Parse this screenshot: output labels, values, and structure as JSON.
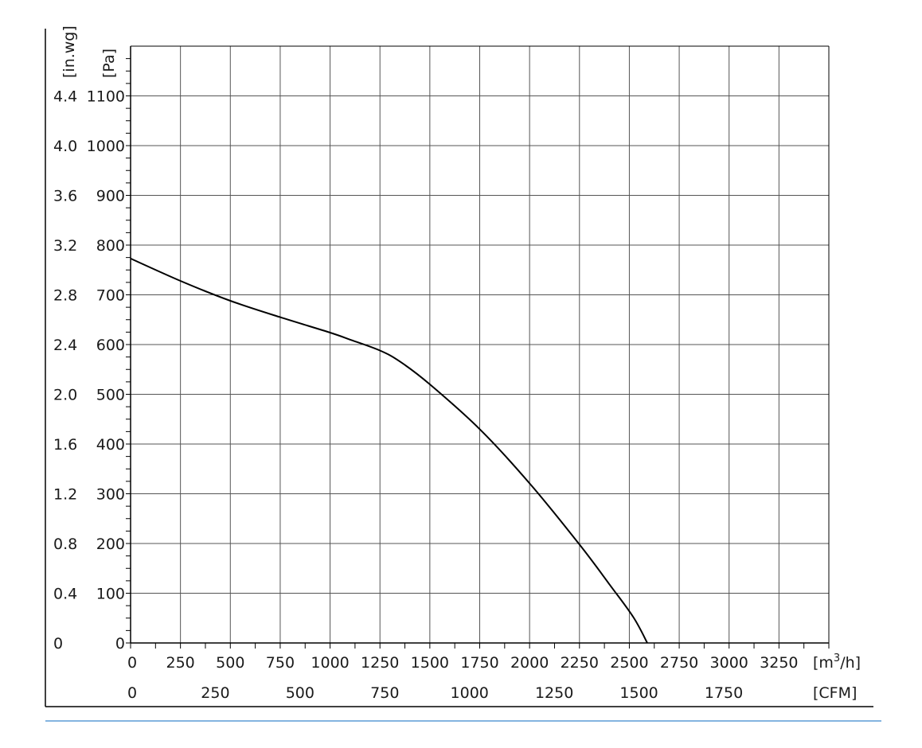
{
  "chart_data": {
    "type": "line",
    "title": "",
    "x": [
      0,
      250,
      500,
      750,
      1000,
      1100,
      1250,
      1350,
      1500,
      1750,
      2000,
      2250,
      2400,
      2520,
      2590
    ],
    "series": [
      {
        "values": [
          773,
          728,
          688,
          655,
          624,
          610,
          588,
          566,
          520,
          430,
          321,
          198,
          118,
          52,
          0
        ]
      }
    ],
    "x_axis_primary": {
      "unit_label": "[m³/h]",
      "unit_base": "[m",
      "unit_sup": "3",
      "unit_tail": "/h]",
      "range": [
        0,
        3500
      ],
      "tick_labels": [
        "0",
        "250",
        "500",
        "750",
        "1000",
        "1250",
        "1500",
        "1750",
        "2000",
        "2250",
        "2500",
        "2750",
        "3000",
        "3250"
      ]
    },
    "x_axis_secondary": {
      "unit_label": "[CFM]",
      "tick_values": [
        0,
        250,
        500,
        750,
        1000,
        1250,
        1500,
        1750
      ],
      "tick_labels": [
        "0",
        "250",
        "500",
        "750",
        "1000",
        "1250",
        "1500",
        "1750"
      ]
    },
    "y_axis_primary": {
      "unit_label": "[Pa]",
      "range": [
        0,
        1200
      ],
      "tick_labels": [
        "0",
        "100",
        "200",
        "300",
        "400",
        "500",
        "600",
        "700",
        "800",
        "900",
        "1000",
        "1100"
      ]
    },
    "y_axis_secondary": {
      "unit_label": "[in.wg]",
      "tick_labels": [
        "0",
        "0.4",
        "0.8",
        "1.2",
        "1.6",
        "2.0",
        "2.4",
        "2.8",
        "3.2",
        "3.6",
        "4.0",
        "4.4"
      ]
    },
    "grid": true,
    "legend": "none",
    "colors": {
      "curve": "#000000",
      "grid": "#555555",
      "axis": "#000000",
      "footer_rule": "#5b9bd5"
    }
  }
}
